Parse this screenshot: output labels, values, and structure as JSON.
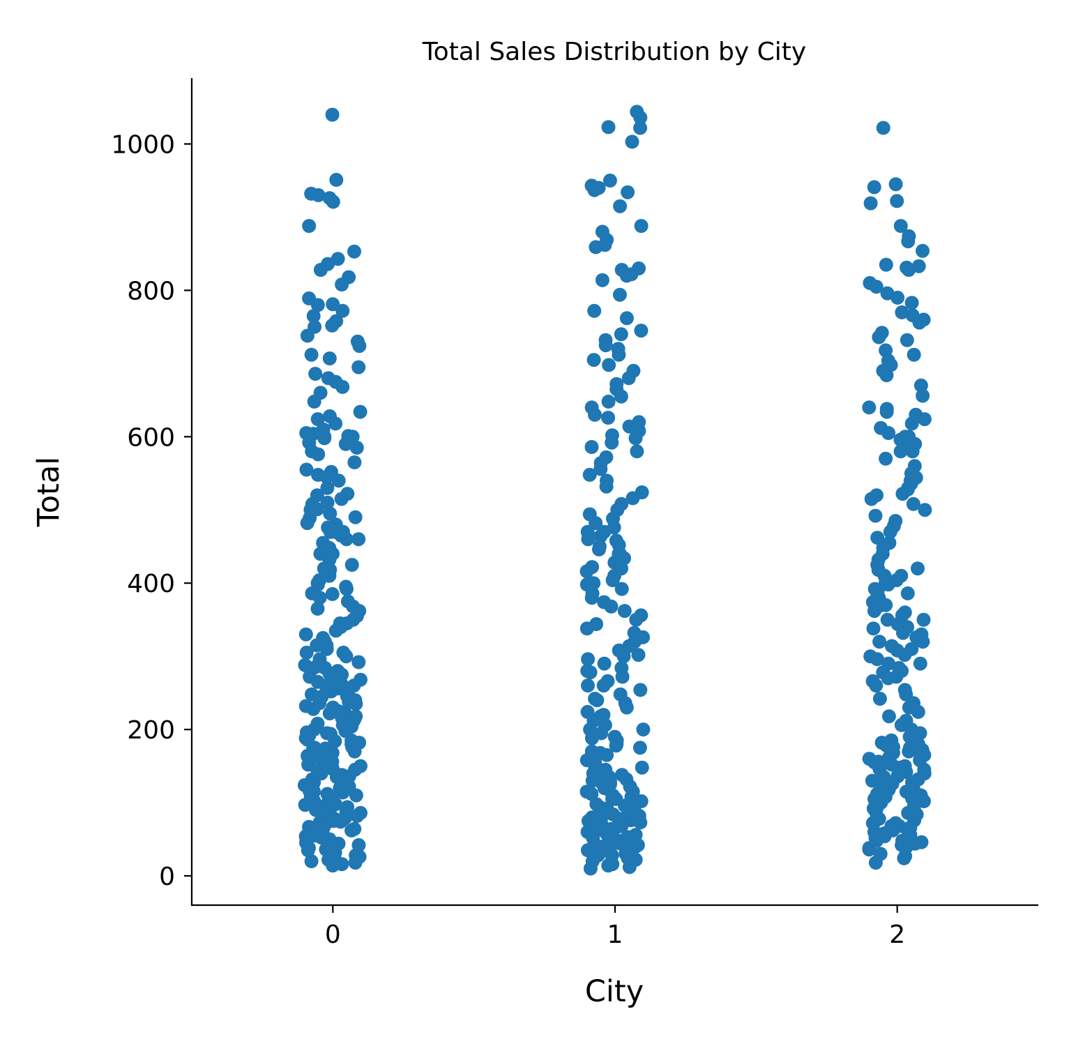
{
  "chart_data": {
    "type": "scatter",
    "subtype": "strip",
    "title": "Total Sales Distribution by City",
    "xlabel": "City",
    "ylabel": "Total",
    "categories": [
      "0",
      "1",
      "2"
    ],
    "xlim": [
      -0.5,
      2.5
    ],
    "ylim": [
      -40,
      1090
    ],
    "yticks": [
      0,
      200,
      400,
      600,
      800,
      1000
    ],
    "ytick_labels": [
      "0",
      "200",
      "400",
      "600",
      "800",
      "1000"
    ],
    "grid": false,
    "legend": "none",
    "marker_color": "#1f77b4",
    "series": [
      {
        "category": "0",
        "values": [
          1040,
          951,
          932,
          930,
          926,
          921,
          888,
          853,
          843,
          836,
          828,
          818,
          808,
          789,
          781,
          780,
          772,
          765,
          758,
          752,
          750,
          738,
          730,
          724,
          712,
          707,
          695,
          686,
          680,
          675,
          668,
          660,
          648,
          634,
          628,
          624,
          618,
          610,
          604,
          601,
          600,
          598,
          592,
          585,
          576,
          565,
          552,
          548,
          540,
          530,
          522,
          515,
          508,
          501,
          495,
          489,
          482,
          476,
          470,
          465,
          460,
          455,
          448,
          440,
          432,
          425,
          418,
          410,
          404,
          398,
          392,
          386,
          380,
          375,
          368,
          362,
          355,
          350,
          345,
          340,
          335,
          330,
          325,
          320,
          315,
          310,
          305,
          300,
          296,
          292,
          288,
          284,
          280,
          276,
          272,
          268,
          264,
          260,
          256,
          252,
          248,
          244,
          240,
          236,
          232,
          228,
          224,
          220,
          216,
          212,
          208,
          204,
          200,
          196,
          192,
          188,
          184,
          180,
          176,
          172,
          168,
          164,
          160,
          156,
          152,
          148,
          144,
          140,
          136,
          132,
          128,
          124,
          120,
          116,
          112,
          108,
          104,
          100,
          97,
          94,
          91,
          88,
          85,
          82,
          79,
          76,
          73,
          70,
          67,
          64,
          61,
          58,
          55,
          52,
          48,
          44,
          40,
          36,
          32,
          28,
          25,
          22,
          20,
          18,
          16,
          14,
          218,
          206,
          194,
          182,
          170,
          158,
          146,
          134,
          122,
          110,
          98,
          86,
          74,
          62,
          50,
          38,
          26,
          270,
          262,
          254,
          246,
          238,
          230,
          222,
          214,
          198,
          186,
          174,
          162,
          150,
          138,
          126,
          114,
          102,
          90,
          78,
          66,
          54,
          42,
          30,
          305,
          315,
          285,
          275,
          265,
          255,
          245,
          235,
          225,
          195,
          185,
          175,
          165,
          155,
          145,
          135,
          125,
          115,
          105,
          95,
          85,
          75,
          65,
          45,
          35,
          460,
          470,
          480,
          490,
          500,
          510,
          520,
          545,
          555,
          580,
          590,
          600,
          605,
          470,
          440,
          420,
          400,
          395,
          385,
          365,
          345
        ]
      },
      {
        "category": "1",
        "values": [
          1044,
          1036,
          1023,
          1022,
          1003,
          950,
          943,
          940,
          937,
          934,
          915,
          888,
          880,
          869,
          862,
          859,
          830,
          828,
          822,
          820,
          814,
          794,
          772,
          762,
          745,
          740,
          732,
          725,
          720,
          712,
          705,
          698,
          690,
          680,
          672,
          665,
          655,
          648,
          640,
          630,
          626,
          620,
          614,
          608,
          602,
          598,
          592,
          586,
          580,
          572,
          564,
          556,
          548,
          540,
          532,
          524,
          516,
          508,
          500,
          494,
          488,
          482,
          476,
          470,
          464,
          458,
          452,
          446,
          440,
          434,
          428,
          422,
          416,
          410,
          404,
          398,
          392,
          386,
          380,
          374,
          368,
          362,
          356,
          350,
          344,
          338,
          332,
          326,
          320,
          314,
          308,
          302,
          296,
          290,
          284,
          278,
          272,
          266,
          260,
          254,
          248,
          242,
          236,
          230,
          224,
          218,
          212,
          206,
          200,
          195,
          190,
          185,
          180,
          175,
          170,
          165,
          160,
          155,
          150,
          145,
          140,
          135,
          130,
          125,
          120,
          115,
          110,
          105,
          100,
          96,
          92,
          88,
          84,
          80,
          76,
          72,
          68,
          64,
          60,
          56,
          52,
          48,
          44,
          40,
          36,
          32,
          28,
          24,
          20,
          16,
          12,
          10,
          135,
          125,
          115,
          105,
          95,
          85,
          75,
          65,
          55,
          45,
          35,
          25,
          18,
          132,
          122,
          112,
          102,
          92,
          82,
          72,
          62,
          52,
          42,
          30,
          22,
          128,
          118,
          108,
          98,
          88,
          78,
          68,
          58,
          48,
          38,
          28,
          14,
          188,
          178,
          168,
          158,
          148,
          138,
          93,
          83,
          73,
          63,
          53,
          43,
          33,
          90,
          80,
          70,
          60,
          50,
          40,
          300,
          280,
          260,
          240,
          220,
          200,
          470,
          460,
          450,
          440,
          420,
          400
        ]
      },
      {
        "category": "2",
        "values": [
          1022,
          945,
          941,
          922,
          919,
          888,
          874,
          867,
          854,
          835,
          833,
          831,
          828,
          810,
          805,
          796,
          790,
          783,
          770,
          766,
          760,
          756,
          742,
          736,
          732,
          718,
          712,
          704,
          698,
          690,
          684,
          670,
          656,
          640,
          638,
          634,
          630,
          624,
          618,
          612,
          605,
          600,
          596,
          590,
          580,
          570,
          560,
          550,
          544,
          536,
          528,
          522,
          515,
          508,
          500,
          492,
          485,
          478,
          470,
          462,
          455,
          448,
          440,
          432,
          425,
          418,
          410,
          404,
          398,
          392,
          386,
          380,
          374,
          368,
          362,
          356,
          350,
          344,
          338,
          332,
          326,
          320,
          314,
          308,
          302,
          296,
          290,
          284,
          278,
          272,
          266,
          260,
          254,
          248,
          242,
          236,
          230,
          224,
          218,
          212,
          206,
          200,
          195,
          190,
          185,
          180,
          175,
          170,
          165,
          160,
          155,
          150,
          145,
          140,
          135,
          130,
          125,
          120,
          115,
          110,
          105,
          100,
          96,
          92,
          88,
          84,
          80,
          76,
          72,
          68,
          64,
          60,
          56,
          52,
          48,
          44,
          40,
          36,
          30,
          24,
          18,
          178,
          168,
          158,
          148,
          138,
          128,
          118,
          108,
          98,
          88,
          78,
          68,
          58,
          48,
          38,
          182,
          172,
          162,
          152,
          142,
          132,
          122,
          112,
          102,
          92,
          82,
          72,
          62,
          52,
          42,
          27,
          176,
          166,
          156,
          146,
          136,
          126,
          116,
          106,
          94,
          86,
          74,
          66,
          54,
          46,
          360,
          350,
          340,
          330,
          320,
          310,
          300,
          290,
          280,
          270,
          420,
          410,
          400,
          390,
          380,
          370,
          600,
          590,
          580,
          540,
          530,
          520
        ]
      }
    ]
  }
}
